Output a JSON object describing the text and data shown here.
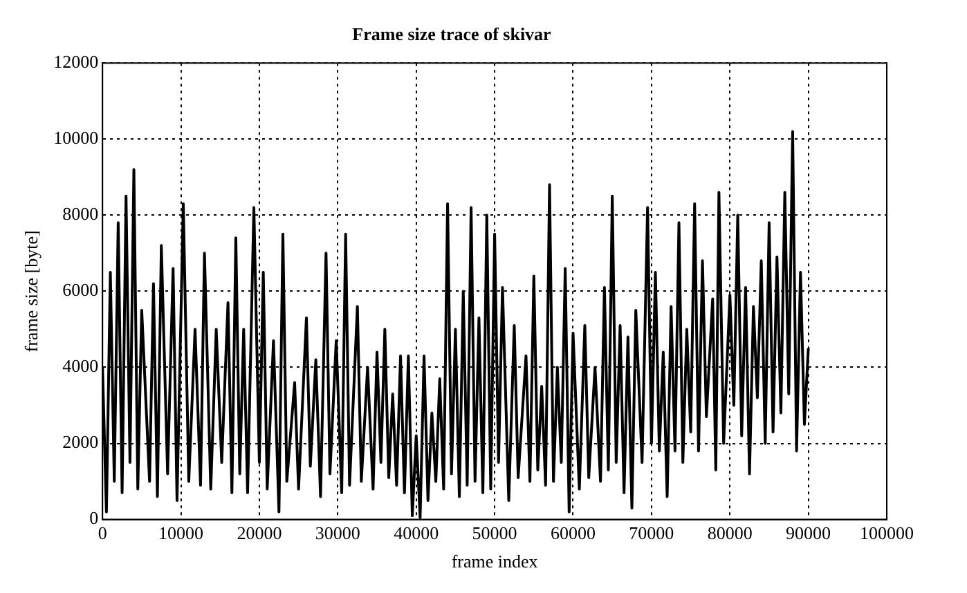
{
  "chart_data": {
    "type": "line",
    "title": "Frame size trace of skivar",
    "xlabel": "frame index",
    "ylabel": "frame size [byte]",
    "x": [
      0,
      500,
      1000,
      1500,
      2000,
      2500,
      3000,
      3500,
      4000,
      4500,
      5000,
      6000,
      6500,
      7000,
      7500,
      8300,
      9000,
      9500,
      10300,
      11000,
      11800,
      12500,
      13000,
      13800,
      14500,
      15200,
      16000,
      16500,
      17000,
      17500,
      18000,
      18500,
      19300,
      20000,
      20500,
      21000,
      21800,
      22500,
      23000,
      23500,
      24500,
      25000,
      26000,
      26500,
      27200,
      27800,
      28500,
      29000,
      29800,
      30500,
      31000,
      31500,
      32500,
      33000,
      33800,
      34500,
      35000,
      35500,
      36000,
      36500,
      37000,
      37500,
      38000,
      38500,
      39000,
      39500,
      40000,
      40500,
      41000,
      41500,
      42000,
      42500,
      43000,
      43500,
      44000,
      44500,
      45000,
      45500,
      46000,
      46500,
      47000,
      47500,
      48000,
      48500,
      49000,
      49500,
      50000,
      50500,
      51000,
      51800,
      52500,
      53000,
      54000,
      54500,
      55000,
      55500,
      56000,
      56500,
      57000,
      57500,
      58000,
      58500,
      59000,
      59500,
      60000,
      60800,
      61500,
      62000,
      62800,
      63500,
      64000,
      64500,
      65000,
      65500,
      66000,
      66500,
      67000,
      67500,
      68000,
      68800,
      69500,
      70000,
      70500,
      71000,
      71500,
      72000,
      72500,
      73000,
      73500,
      74000,
      74500,
      75000,
      75500,
      76000,
      76500,
      77000,
      77800,
      78200,
      78600,
      79200,
      80000,
      80500,
      81000,
      81500,
      82000,
      82500,
      83000,
      83500,
      84000,
      84500,
      85000,
      85500,
      86000,
      86500,
      87000,
      87500,
      88000,
      88500,
      89000,
      89500,
      90000
    ],
    "series": [
      {
        "color": "#000000",
        "values": [
          4000,
          200,
          6500,
          1000,
          7800,
          700,
          8500,
          1500,
          9200,
          800,
          5500,
          1000,
          6200,
          600,
          7200,
          1200,
          6600,
          500,
          8300,
          1000,
          5000,
          900,
          7000,
          800,
          5000,
          1500,
          5700,
          700,
          7400,
          1200,
          5000,
          700,
          8200,
          1500,
          6500,
          800,
          4700,
          200,
          7500,
          1000,
          3600,
          800,
          5300,
          1400,
          4200,
          600,
          7000,
          1200,
          4700,
          700,
          7500,
          900,
          5600,
          1000,
          4000,
          800,
          4400,
          1500,
          5000,
          1100,
          3300,
          900,
          4300,
          700,
          4300,
          100,
          2200,
          50,
          4300,
          500,
          2800,
          1000,
          3700,
          800,
          8300,
          1200,
          5000,
          600,
          6000,
          900,
          8200,
          1000,
          5300,
          700,
          8000,
          800,
          7500,
          1500,
          6100,
          500,
          5100,
          1100,
          4300,
          1000,
          6400,
          1300,
          3500,
          900,
          8800,
          1000,
          4000,
          1500,
          6600,
          200,
          4900,
          800,
          5100,
          1100,
          4000,
          1000,
          6100,
          1300,
          8500,
          1500,
          5100,
          700,
          4800,
          300,
          5500,
          1500,
          8200,
          2000,
          6500,
          1800,
          4400,
          600,
          5600,
          1800,
          7800,
          1500,
          5000,
          2300,
          8300,
          1800,
          6800,
          2700,
          5800,
          1300,
          8600,
          2000,
          5900,
          3000,
          8000,
          2200,
          6100,
          1200,
          5600,
          3200,
          6800,
          2000,
          7800,
          2300,
          6900,
          2800,
          8600,
          3300,
          10200,
          1800,
          6500,
          2500,
          4500
        ]
      }
    ],
    "xlim": [
      0,
      100000
    ],
    "xticks": [
      0,
      10000,
      20000,
      30000,
      40000,
      50000,
      60000,
      70000,
      80000,
      90000,
      100000
    ],
    "ylim": [
      0,
      12000
    ],
    "yticks": [
      0,
      2000,
      4000,
      6000,
      8000,
      10000,
      12000
    ],
    "grid": true,
    "legend": false,
    "marker": "none",
    "line_style": "solid"
  }
}
